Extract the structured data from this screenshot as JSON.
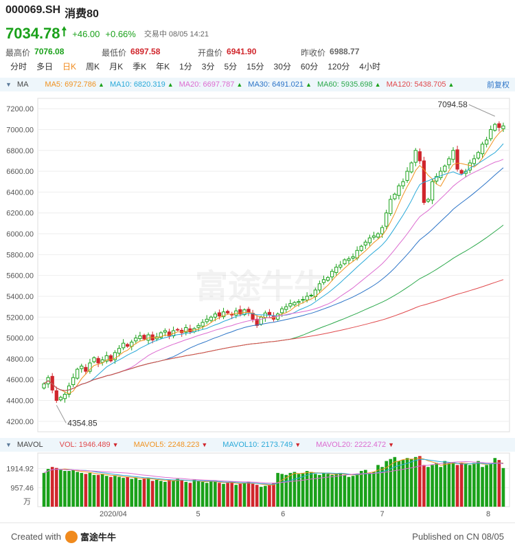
{
  "header": {
    "code": "000069.SH",
    "name": "消费80",
    "price": "7034.78",
    "change": "+46.00",
    "change_pct": "+0.66%",
    "status": "交易中 08/05 14:21",
    "stats": [
      {
        "label": "最高价",
        "value": "7076.08",
        "color": "green"
      },
      {
        "label": "最低价",
        "value": "6897.58",
        "color": "red"
      },
      {
        "label": "开盘价",
        "value": "6941.90",
        "color": "red"
      },
      {
        "label": "昨收价",
        "value": "6988.77",
        "color": "gray"
      }
    ]
  },
  "tabs": [
    "分时",
    "多日",
    "日K",
    "周K",
    "月K",
    "季K",
    "年K",
    "1分",
    "3分",
    "5分",
    "15分",
    "30分",
    "60分",
    "120分",
    "4小时"
  ],
  "active_tab": "日K",
  "ma_bar": {
    "label": "MA",
    "items": [
      {
        "text": "MA5: 6972.786",
        "color": "#f0911e"
      },
      {
        "text": "MA10: 6820.319",
        "color": "#27a8d8"
      },
      {
        "text": "MA20: 6697.787",
        "color": "#dc6bd0"
      },
      {
        "text": "MA30: 6491.021",
        "color": "#2a73c7"
      },
      {
        "text": "MA60: 5935.698",
        "color": "#2aa84a"
      },
      {
        "text": "MA120: 5438.705",
        "color": "#e0484b"
      }
    ],
    "restore": "前复权"
  },
  "vol_bar": {
    "label": "MAVOL",
    "items": [
      {
        "text": "VOL: 1946.489",
        "color": "#e0484b"
      },
      {
        "text": "MAVOL5: 2248.223",
        "color": "#f0911e"
      },
      {
        "text": "MAVOL10: 2173.749",
        "color": "#27a8d8"
      },
      {
        "text": "MAVOL20: 2222.472",
        "color": "#dc6bd0"
      }
    ]
  },
  "footer": {
    "created_with": "Created with",
    "brand": "富途牛牛",
    "published": "Published on CN 08/05"
  },
  "chart_data": {
    "type": "candlestick",
    "y_ticks": [
      "7200.00",
      "7000.00",
      "6800.00",
      "6600.00",
      "6400.00",
      "6200.00",
      "6000.00",
      "5800.00",
      "5600.00",
      "5400.00",
      "5200.00",
      "5000.00",
      "4800.00",
      "4600.00",
      "4400.00",
      "4200.00"
    ],
    "ylim": [
      4100,
      7300
    ],
    "x_labels": [
      "2020/04",
      "5",
      "6",
      "7",
      "8"
    ],
    "annotations": {
      "high": "7094.58",
      "low": "4354.85"
    },
    "closes": [
      4560,
      4620,
      4500,
      4400,
      4430,
      4460,
      4540,
      4620,
      4700,
      4730,
      4680,
      4760,
      4810,
      4760,
      4790,
      4830,
      4780,
      4860,
      4900,
      4950,
      4920,
      4960,
      5000,
      5020,
      4990,
      5030,
      4980,
      5010,
      5050,
      5070,
      5020,
      5070,
      5080,
      5050,
      5100,
      5060,
      5090,
      5120,
      5150,
      5180,
      5200,
      5230,
      5210,
      5250,
      5240,
      5220,
      5260,
      5230,
      5270,
      5250,
      5180,
      5120,
      5200,
      5240,
      5220,
      5180,
      5230,
      5280,
      5300,
      5330,
      5340,
      5350,
      5370,
      5400,
      5410,
      5460,
      5520,
      5560,
      5580,
      5640,
      5680,
      5700,
      5750,
      5760,
      5780,
      5840,
      5880,
      5920,
      5960,
      5980,
      6000,
      6060,
      6200,
      6330,
      6380,
      6460,
      6500,
      6600,
      6680,
      6800,
      6700,
      6300,
      6330,
      6500,
      6550,
      6600,
      6650,
      6720,
      6800,
      6620,
      6580,
      6600,
      6680,
      6720,
      6780,
      6860,
      6900,
      7000,
      7050,
      7020,
      7035
    ],
    "volumes": [
      1700,
      1900,
      2000,
      1950,
      1850,
      1800,
      1800,
      1850,
      1750,
      1700,
      1650,
      1700,
      1600,
      1600,
      1650,
      1550,
      1500,
      1550,
      1500,
      1450,
      1500,
      1400,
      1450,
      1350,
      1400,
      1450,
      1300,
      1350,
      1300,
      1250,
      1350,
      1300,
      1400,
      1350,
      1250,
      1200,
      1350,
      1300,
      1250,
      1200,
      1300,
      1250,
      1200,
      1150,
      1200,
      1250,
      1100,
      1150,
      1200,
      1250,
      1150,
      1100,
      1000,
      1050,
      1100,
      1200,
      1700,
      1650,
      1600,
      1700,
      1750,
      1650,
      1700,
      1800,
      1750,
      1650,
      1600,
      1700,
      1650,
      1600,
      1650,
      1700,
      1600,
      1500,
      1550,
      1650,
      1800,
      1850,
      1700,
      1750,
      2100,
      2000,
      2300,
      2400,
      2500,
      2300,
      2350,
      2450,
      2400,
      2500,
      2550,
      2100,
      2000,
      2100,
      2200,
      2000,
      2300,
      2200,
      2250,
      2100,
      2200,
      2150,
      2100,
      2200,
      2300,
      2000,
      2100,
      2150,
      2450,
      2350,
      1946
    ],
    "ma_series": [
      {
        "name": "MA10",
        "color": "#27a8d8"
      },
      {
        "name": "MA20",
        "color": "#dc6bd0"
      },
      {
        "name": "MA30",
        "color": "#2a73c7"
      },
      {
        "name": "MA60",
        "color": "#2aa84a"
      },
      {
        "name": "MA120",
        "color": "#e0484b"
      }
    ]
  },
  "watermark": "富途牛牛"
}
